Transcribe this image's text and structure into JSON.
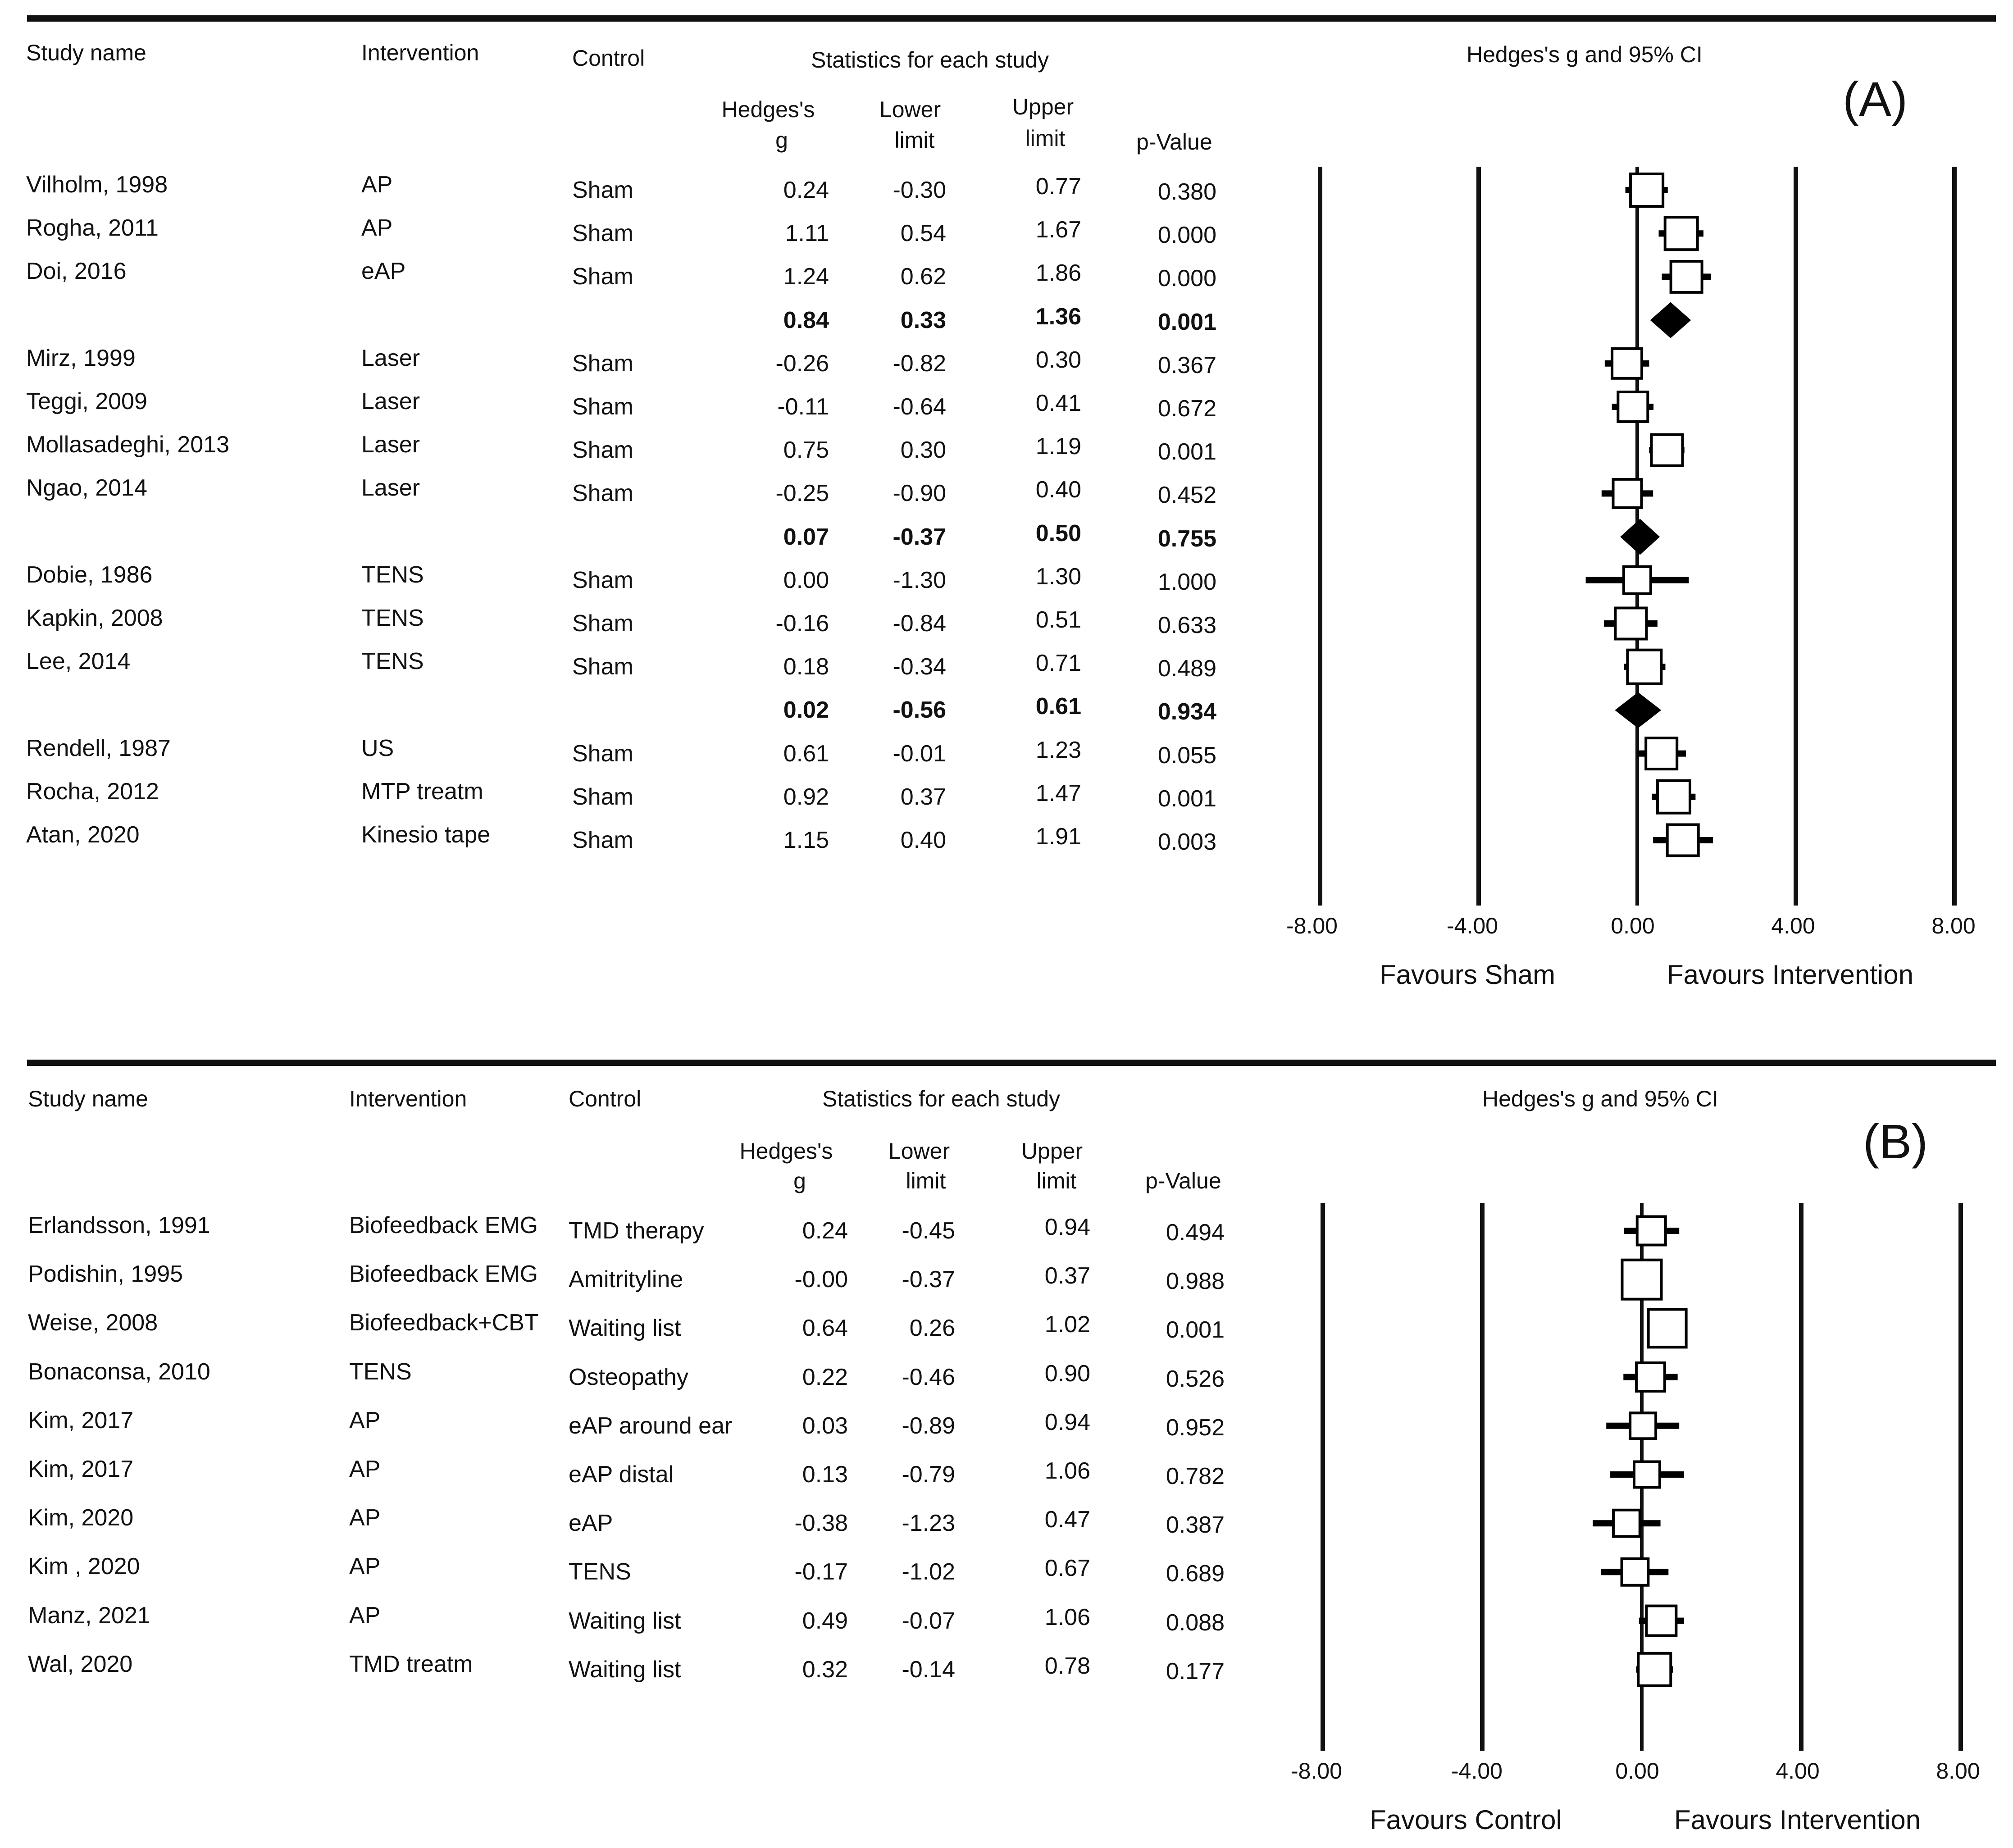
{
  "chart_data": [
    {
      "type": "forest",
      "panel_label": "(A)",
      "headers": {
        "study_name": "Study name",
        "intervention": "Intervention",
        "control": "Control",
        "stats_group": "Statistics for each study",
        "hedges_g_line1": "Hedges's",
        "hedges_g_line2": "g",
        "lower_line1": "Lower",
        "lower_line2": "limit",
        "upper_line1": "Upper",
        "upper_line2": "limit",
        "p_value": "p-Value",
        "plot_title": "Hedges's g and 95% CI"
      },
      "xlim": [
        -8,
        8
      ],
      "x_ticks": [
        "-8.00",
        "-4.00",
        "0.00",
        "4.00",
        "8.00"
      ],
      "x_tick_values": [
        -8,
        -4,
        0,
        4,
        8
      ],
      "favours_left": "Favours Sham",
      "favours_right": "Favours Intervention",
      "rows": [
        {
          "study": "Vilholm, 1998",
          "intervention": "AP",
          "control": "Sham",
          "g": "0.24",
          "lower": "-0.30",
          "upper": "0.77",
          "p": "0.380",
          "gv": 0.24,
          "lv": -0.3,
          "uv": 0.77,
          "weight": 0.6,
          "summary": false
        },
        {
          "study": "Rogha, 2011",
          "intervention": "AP",
          "control": "Sham",
          "g": "1.11",
          "lower": "0.54",
          "upper": "1.67",
          "p": "0.000",
          "gv": 1.11,
          "lv": 0.54,
          "uv": 1.67,
          "weight": 0.6,
          "summary": false
        },
        {
          "study": "Doi, 2016",
          "intervention": "eAP",
          "control": "Sham",
          "g": "1.24",
          "lower": "0.62",
          "upper": "1.86",
          "p": "0.000",
          "gv": 1.24,
          "lv": 0.62,
          "uv": 1.86,
          "weight": 0.55,
          "summary": false
        },
        {
          "study": "",
          "intervention": "",
          "control": "",
          "g": "0.84",
          "lower": "0.33",
          "upper": "1.36",
          "p": "0.001",
          "gv": 0.84,
          "lv": 0.33,
          "uv": 1.36,
          "weight": 1,
          "summary": true
        },
        {
          "study": "Mirz, 1999",
          "intervention": "Laser",
          "control": "Sham",
          "g": "-0.26",
          "lower": "-0.82",
          "upper": "0.30",
          "p": "0.367",
          "gv": -0.26,
          "lv": -0.82,
          "uv": 0.3,
          "weight": 0.5,
          "summary": false
        },
        {
          "study": "Teggi, 2009",
          "intervention": "Laser",
          "control": "Sham",
          "g": "-0.11",
          "lower": "-0.64",
          "upper": "0.41",
          "p": "0.672",
          "gv": -0.11,
          "lv": -0.64,
          "uv": 0.41,
          "weight": 0.5,
          "summary": false
        },
        {
          "study": "Mollasadeghi, 2013",
          "intervention": "Laser",
          "control": "Sham",
          "g": "0.75",
          "lower": "0.30",
          "upper": "1.19",
          "p": "0.001",
          "gv": 0.75,
          "lv": 0.3,
          "uv": 1.19,
          "weight": 0.55,
          "summary": false
        },
        {
          "study": "Ngao, 2014",
          "intervention": "Laser",
          "control": "Sham",
          "g": "-0.25",
          "lower": "-0.90",
          "upper": "0.40",
          "p": "0.452",
          "gv": -0.25,
          "lv": -0.9,
          "uv": 0.4,
          "weight": 0.45,
          "summary": false
        },
        {
          "study": "",
          "intervention": "",
          "control": "",
          "g": "0.07",
          "lower": "-0.37",
          "upper": "0.50",
          "p": "0.755",
          "gv": 0.07,
          "lv": -0.37,
          "uv": 0.5,
          "weight": 1,
          "summary": true
        },
        {
          "study": "Dobie, 1986",
          "intervention": "TENS",
          "control": "Sham",
          "g": "0.00",
          "lower": "-1.30",
          "upper": "1.30",
          "p": "1.000",
          "gv": 0.0,
          "lv": -1.3,
          "uv": 1.3,
          "weight": 0.4,
          "summary": false
        },
        {
          "study": "Kapkin, 2008",
          "intervention": "TENS",
          "control": "Sham",
          "g": "-0.16",
          "lower": "-0.84",
          "upper": "0.51",
          "p": "0.633",
          "gv": -0.16,
          "lv": -0.84,
          "uv": 0.51,
          "weight": 0.55,
          "summary": false
        },
        {
          "study": "Lee, 2014",
          "intervention": "TENS",
          "control": "Sham",
          "g": "0.18",
          "lower": "-0.34",
          "upper": "0.71",
          "p": "0.489",
          "gv": 0.18,
          "lv": -0.34,
          "uv": 0.71,
          "weight": 0.65,
          "summary": false
        },
        {
          "study": "",
          "intervention": "",
          "control": "",
          "g": "0.02",
          "lower": "-0.56",
          "upper": "0.61",
          "p": "0.934",
          "gv": 0.02,
          "lv": -0.56,
          "uv": 0.61,
          "weight": 1,
          "summary": true
        },
        {
          "study": "Rendell, 1987",
          "intervention": "US",
          "control": "Sham",
          "g": "0.61",
          "lower": "-0.01",
          "upper": "1.23",
          "p": "0.055",
          "gv": 0.61,
          "lv": -0.01,
          "uv": 1.23,
          "weight": 0.55,
          "summary": false
        },
        {
          "study": "Rocha, 2012",
          "intervention": "MTP treatm",
          "control": "Sham",
          "g": "0.92",
          "lower": "0.37",
          "upper": "1.47",
          "p": "0.001",
          "gv": 0.92,
          "lv": 0.37,
          "uv": 1.47,
          "weight": 0.6,
          "summary": false
        },
        {
          "study": "Atan, 2020",
          "intervention": "Kinesio tape",
          "control": "Sham",
          "g": "1.15",
          "lower": "0.40",
          "upper": "1.91",
          "p": "0.003",
          "gv": 1.15,
          "lv": 0.4,
          "uv": 1.91,
          "weight": 0.55,
          "summary": false
        }
      ]
    },
    {
      "type": "forest",
      "panel_label": "(B)",
      "headers": {
        "study_name": "Study name",
        "intervention": "Intervention",
        "control": "Control",
        "stats_group": "Statistics for each study",
        "hedges_g_line1": "Hedges's",
        "hedges_g_line2": "g",
        "lower_line1": "Lower",
        "lower_line2": "limit",
        "upper_line1": "Upper",
        "upper_line2": "limit",
        "p_value": "p-Value",
        "plot_title": "Hedges's g and 95% CI"
      },
      "xlim": [
        -8,
        8
      ],
      "x_ticks": [
        "-8.00",
        "-4.00",
        "0.00",
        "4.00",
        "8.00"
      ],
      "x_tick_values": [
        -8,
        -4,
        0,
        4,
        8
      ],
      "favours_left": "Favours Control",
      "favours_right": "Favours Intervention",
      "rows": [
        {
          "study": "Erlandsson, 1991",
          "intervention": "Biofeedback EMG",
          "control": "TMD therapy",
          "g": "0.24",
          "lower": "-0.45",
          "upper": "0.94",
          "p": "0.494",
          "gv": 0.24,
          "lv": -0.45,
          "uv": 0.94,
          "weight": 0.45,
          "summary": false
        },
        {
          "study": "Podishin, 1995",
          "intervention": "Biofeedback EMG",
          "control": "Amitrityline",
          "g": "-0.00",
          "lower": "-0.37",
          "upper": "0.37",
          "p": "0.988",
          "gv": 0.0,
          "lv": -0.37,
          "uv": 0.37,
          "weight": 0.85,
          "summary": false
        },
        {
          "study": "Weise, 2008",
          "intervention": "Biofeedback+CBT",
          "control": "Waiting list",
          "g": "0.64",
          "lower": "0.26",
          "upper": "1.02",
          "p": "0.001",
          "gv": 0.64,
          "lv": 0.26,
          "uv": 1.02,
          "weight": 0.8,
          "summary": false
        },
        {
          "study": "Bonaconsa, 2010",
          "intervention": "TENS",
          "control": "Osteopathy",
          "g": "0.22",
          "lower": "-0.46",
          "upper": "0.90",
          "p": "0.526",
          "gv": 0.22,
          "lv": -0.46,
          "uv": 0.9,
          "weight": 0.45,
          "summary": false
        },
        {
          "study": "Kim, 2017",
          "intervention": "AP",
          "control": "eAP around ear",
          "g": "0.03",
          "lower": "-0.89",
          "upper": "0.94",
          "p": "0.952",
          "gv": 0.03,
          "lv": -0.89,
          "uv": 0.94,
          "weight": 0.35,
          "summary": false
        },
        {
          "study": "Kim, 2017",
          "intervention": "AP",
          "control": "eAP distal",
          "g": "0.13",
          "lower": "-0.79",
          "upper": "1.06",
          "p": "0.782",
          "gv": 0.13,
          "lv": -0.79,
          "uv": 1.06,
          "weight": 0.35,
          "summary": false
        },
        {
          "study": "Kim, 2020",
          "intervention": "AP",
          "control": "eAP",
          "g": "-0.38",
          "lower": "-1.23",
          "upper": "0.47",
          "p": "0.387",
          "gv": -0.38,
          "lv": -1.23,
          "uv": 0.47,
          "weight": 0.38,
          "summary": false
        },
        {
          "study": "Kim , 2020",
          "intervention": "AP",
          "control": "TENS",
          "g": "-0.17",
          "lower": "-1.02",
          "upper": "0.67",
          "p": "0.689",
          "gv": -0.17,
          "lv": -1.02,
          "uv": 0.67,
          "weight": 0.38,
          "summary": false
        },
        {
          "study": "Manz, 2021",
          "intervention": "AP",
          "control": "Waiting list",
          "g": "0.49",
          "lower": "-0.07",
          "upper": "1.06",
          "p": "0.088",
          "gv": 0.49,
          "lv": -0.07,
          "uv": 1.06,
          "weight": 0.5,
          "summary": false
        },
        {
          "study": "Wal, 2020",
          "intervention": "TMD treatm",
          "control": "Waiting list",
          "g": "0.32",
          "lower": "-0.14",
          "upper": "0.78",
          "p": "0.177",
          "gv": 0.32,
          "lv": -0.14,
          "uv": 0.78,
          "weight": 0.6,
          "summary": false
        }
      ]
    }
  ]
}
